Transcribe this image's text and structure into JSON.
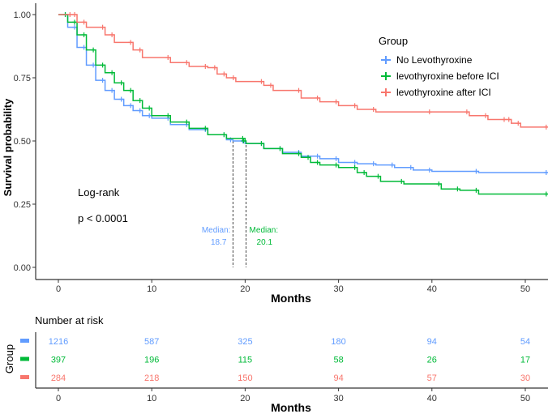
{
  "chart_data": {
    "type": "line",
    "subtype": "kaplan-meier",
    "ylabel": "Survival probability",
    "xlabel": "Months",
    "xlim": [
      0,
      52.5
    ],
    "ylim": [
      0,
      1
    ],
    "xticks": [
      "0",
      "10",
      "20",
      "30",
      "40",
      "50"
    ],
    "yticks": [
      "0.00",
      "0.25",
      "0.50",
      "0.75",
      "1.00"
    ],
    "grid": false,
    "legend": {
      "title": "Group",
      "placement": "top-right"
    },
    "annotation": {
      "test": "Log-rank",
      "pvalue": "p < 0.0001"
    },
    "medians": [
      {
        "label": "Median:",
        "value": "18.7",
        "x": 18.7,
        "color": "#619CFF"
      },
      {
        "label": "Median:",
        "value": "20.1",
        "x": 20.1,
        "color": "#00BA38"
      }
    ],
    "series": [
      {
        "name": "No Levothyroxine",
        "color": "#619CFF",
        "x": [
          0,
          1,
          2,
          3,
          4,
          5,
          6,
          7,
          8,
          9,
          10,
          12,
          14,
          16,
          18,
          18.7,
          20,
          22,
          24,
          26,
          28,
          30,
          32,
          34,
          36,
          38,
          40,
          45,
          52.5
        ],
        "y": [
          1,
          0.95,
          0.87,
          0.8,
          0.74,
          0.7,
          0.665,
          0.64,
          0.62,
          0.6,
          0.59,
          0.565,
          0.545,
          0.525,
          0.505,
          0.5,
          0.49,
          0.47,
          0.455,
          0.44,
          0.43,
          0.415,
          0.41,
          0.405,
          0.395,
          0.385,
          0.38,
          0.375,
          0.375
        ]
      },
      {
        "name": "levothyroxine before ICI",
        "color": "#00BA38",
        "x": [
          0,
          1,
          2,
          3,
          4,
          5,
          6,
          7,
          8,
          9,
          10,
          12,
          14,
          16,
          18,
          20,
          20.1,
          22,
          24,
          26,
          27,
          28,
          30,
          32,
          33,
          34.5,
          37,
          41,
          43,
          45,
          52.5
        ],
        "y": [
          1,
          0.97,
          0.92,
          0.86,
          0.8,
          0.77,
          0.73,
          0.7,
          0.66,
          0.63,
          0.6,
          0.575,
          0.55,
          0.525,
          0.51,
          0.5,
          0.49,
          0.47,
          0.45,
          0.435,
          0.415,
          0.405,
          0.395,
          0.375,
          0.36,
          0.34,
          0.33,
          0.31,
          0.305,
          0.29,
          0.29
        ]
      },
      {
        "name": "levothyroxine after ICI",
        "color": "#F8766D",
        "x": [
          0,
          1.5,
          2,
          3,
          5,
          6,
          8,
          9,
          12,
          14,
          16,
          17,
          18,
          19,
          22,
          23,
          26,
          28,
          30,
          32,
          34,
          40,
          44,
          46,
          48,
          48.5,
          49.5,
          52.5
        ],
        "y": [
          1,
          1,
          0.97,
          0.95,
          0.92,
          0.89,
          0.86,
          0.83,
          0.81,
          0.795,
          0.79,
          0.765,
          0.75,
          0.735,
          0.72,
          0.7,
          0.67,
          0.655,
          0.64,
          0.625,
          0.615,
          0.615,
          0.6,
          0.585,
          0.585,
          0.57,
          0.555,
          0.555
        ]
      }
    ],
    "risk_table": {
      "title": "Number at risk",
      "ylabel": "Group",
      "xlabel": "Months",
      "times": [
        "0",
        "10",
        "20",
        "30",
        "40",
        "50"
      ],
      "rows": [
        {
          "color": "#619CFF",
          "values": [
            "1216",
            "587",
            "325",
            "180",
            "94",
            "54"
          ]
        },
        {
          "color": "#00BA38",
          "values": [
            "397",
            "196",
            "115",
            "58",
            "26",
            "17"
          ]
        },
        {
          "color": "#F8766D",
          "values": [
            "284",
            "218",
            "150",
            "94",
            "57",
            "30"
          ]
        }
      ]
    }
  }
}
